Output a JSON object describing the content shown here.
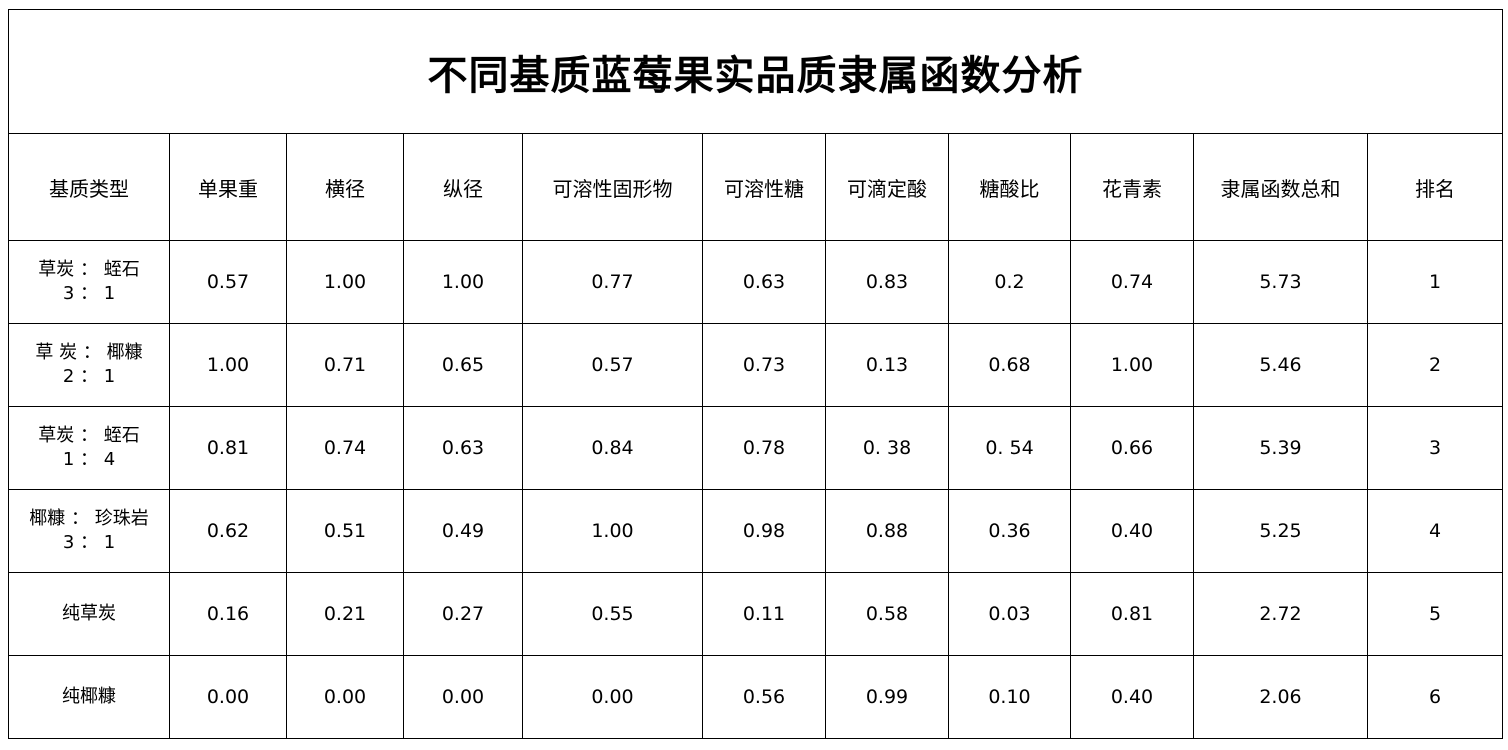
{
  "title": "不同基质蓝莓果实品质隶属函数分析",
  "columns": [
    "基质类型",
    "单果重",
    "横径",
    "纵径",
    "可溶性固形物",
    "可溶性糖",
    "可滴定酸",
    "糖酸比",
    "花青素",
    "隶属函数总和",
    "排名"
  ],
  "rows": [
    [
      "草炭 ： 蛭石\n3 ： 1",
      "0.57",
      "1.00",
      "1.00",
      "0.77",
      "0.63",
      "0.83",
      "0.2",
      "0.74",
      "5.73",
      "1"
    ],
    [
      "草 炭 ： 椰糠\n2 ： 1",
      "1.00",
      "0.71",
      "0.65",
      "0.57",
      "0.73",
      "0.13",
      "0.68",
      "1.00",
      "5.46",
      "2"
    ],
    [
      "草炭 ： 蛭石\n1 ： 4",
      "0.81",
      "0.74",
      "0.63",
      "0.84",
      "0.78",
      "0. 38",
      "0. 54",
      "0.66",
      "5.39",
      "3"
    ],
    [
      "椰糠 ： 珍珠岩\n3 ： 1",
      "0.62",
      "0.51",
      "0.49",
      "1.00",
      "0.98",
      "0.88",
      "0.36",
      "0.40",
      "5.25",
      "4"
    ],
    [
      "纯草炭",
      "0.16",
      "0.21",
      "0.27",
      "0.55",
      "0.11",
      "0.58",
      "0.03",
      "0.81",
      "2.72",
      "5"
    ],
    [
      "纯椰糠",
      "0.00",
      "0.00",
      "0.00",
      "0.00",
      "0.56",
      "0.99",
      "0.10",
      "0.40",
      "2.06",
      "6"
    ]
  ]
}
